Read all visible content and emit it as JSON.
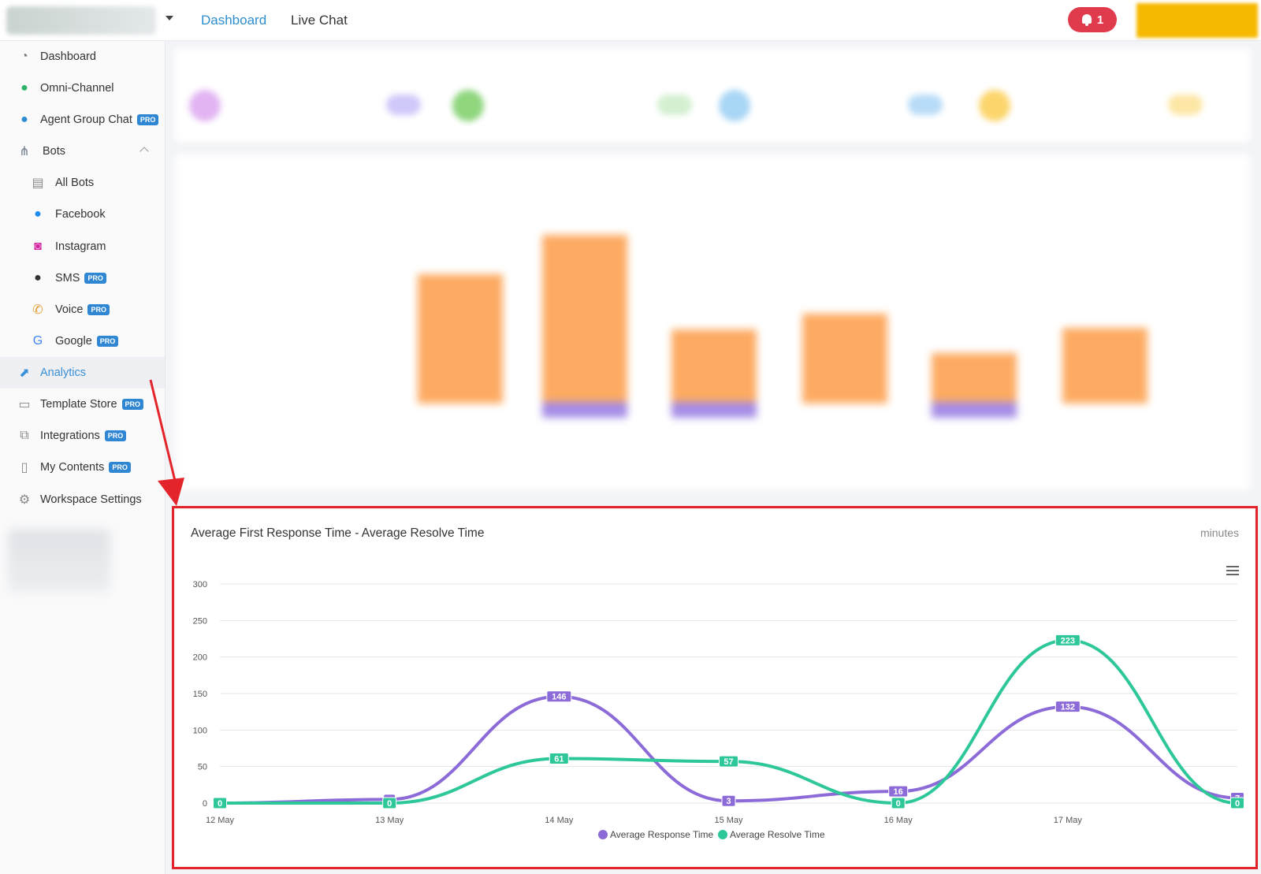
{
  "topbar": {
    "nav": {
      "dashboard": "Dashboard",
      "live_chat": "Live Chat"
    },
    "notification_count": "1"
  },
  "sidebar": {
    "items": [
      {
        "id": "dashboard",
        "label": "Dashboard",
        "icon": "dashboard-icon",
        "pro": false,
        "indent": false
      },
      {
        "id": "omni-channel",
        "label": "Omni-Channel",
        "icon": "chat-bubbles-icon",
        "pro": false,
        "indent": false
      },
      {
        "id": "agent-group-chat",
        "label": "Agent Group Chat",
        "icon": "agent-headset-icon",
        "pro": true,
        "indent": false
      },
      {
        "id": "bots",
        "label": "Bots",
        "icon": "sitemap-icon",
        "pro": false,
        "indent": false,
        "expanded": true
      },
      {
        "id": "all-bots",
        "label": "All Bots",
        "icon": "book-icon",
        "pro": false,
        "indent": true
      },
      {
        "id": "facebook",
        "label": "Facebook",
        "icon": "messenger-icon",
        "pro": false,
        "indent": true
      },
      {
        "id": "instagram",
        "label": "Instagram",
        "icon": "instagram-icon",
        "pro": false,
        "indent": true
      },
      {
        "id": "sms",
        "label": "SMS",
        "icon": "sms-icon",
        "pro": true,
        "indent": true
      },
      {
        "id": "voice",
        "label": "Voice",
        "icon": "phone-icon",
        "pro": true,
        "indent": true
      },
      {
        "id": "google",
        "label": "Google",
        "icon": "google-icon",
        "pro": true,
        "indent": true
      },
      {
        "id": "analytics",
        "label": "Analytics",
        "icon": "analytics-icon",
        "pro": false,
        "indent": false,
        "active": true
      },
      {
        "id": "template-store",
        "label": "Template Store",
        "icon": "store-icon",
        "pro": true,
        "indent": false
      },
      {
        "id": "integrations",
        "label": "Integrations",
        "icon": "integrations-icon",
        "pro": true,
        "indent": false
      },
      {
        "id": "my-contents",
        "label": "My Contents",
        "icon": "document-icon",
        "pro": true,
        "indent": false
      },
      {
        "id": "workspace-settings",
        "label": "Workspace Settings",
        "icon": "gear-icon",
        "pro": false,
        "indent": false
      }
    ],
    "pro_label": "PRO"
  },
  "panel": {
    "title": "Average First Response Time - Average Resolve Time",
    "units": "minutes"
  },
  "chart_data": {
    "type": "line",
    "title": "Average First Response Time - Average Resolve Time",
    "ylabel": "",
    "xlabel": "",
    "categories": [
      "12 May",
      "13 May",
      "14 May",
      "15 May",
      "16 May",
      "17 May",
      ""
    ],
    "x_tick_labels": [
      "12 May",
      "13 May",
      "14 May",
      "15 May",
      "16 May",
      "17 May"
    ],
    "y_ticks": [
      0,
      50,
      100,
      150,
      200,
      250,
      300
    ],
    "ylim": [
      0,
      300
    ],
    "grid": true,
    "legend": "bottom-center",
    "smooth": true,
    "series": [
      {
        "name": "Average Response Time",
        "color": "#8c6bd8",
        "values": [
          0,
          5,
          146,
          3,
          16,
          132,
          7
        ],
        "labels": [
          "0",
          "",
          "146",
          "3",
          "16",
          "132",
          "7"
        ]
      },
      {
        "name": "Average Resolve Time",
        "color": "#2dc79a",
        "values": [
          0,
          0,
          61,
          57,
          0,
          223,
          0
        ],
        "labels": [
          "0",
          "0",
          "61",
          "57",
          "0",
          "223",
          "0"
        ]
      }
    ]
  }
}
